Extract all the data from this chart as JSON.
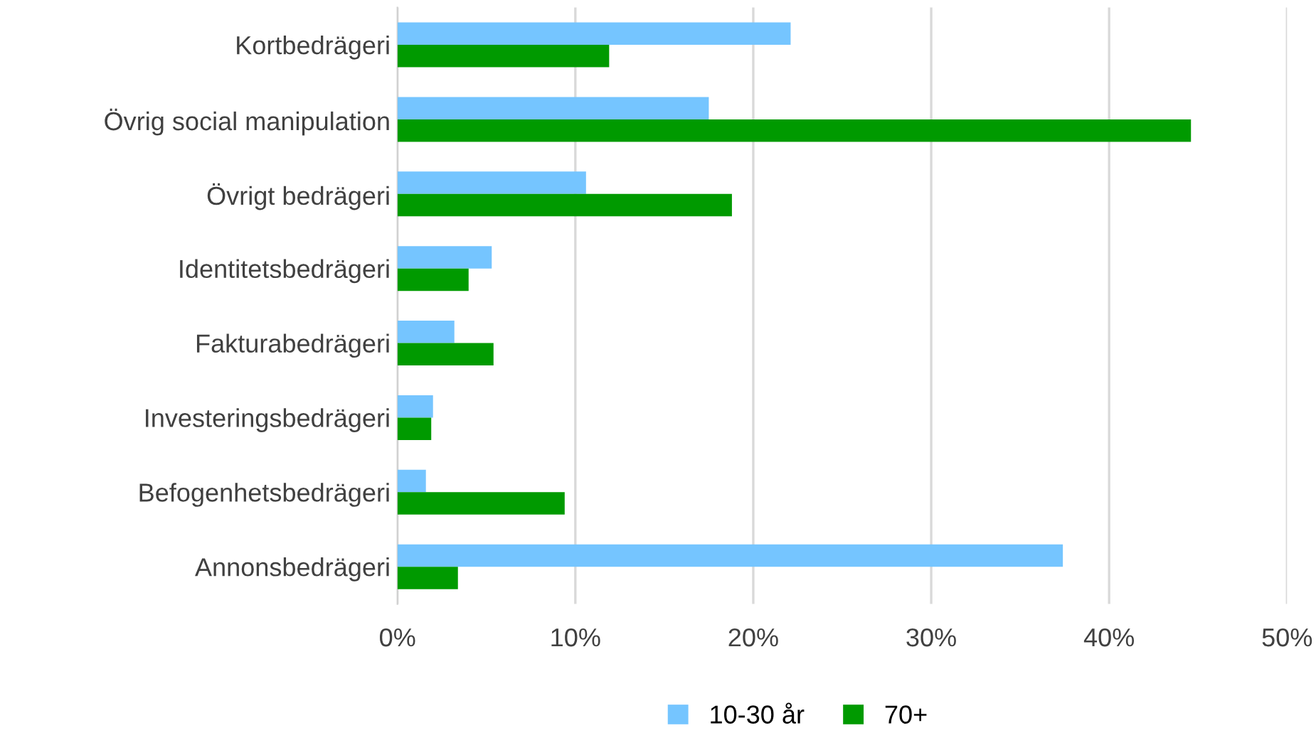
{
  "chart_data": {
    "type": "bar",
    "orientation": "horizontal",
    "categories": [
      "Kortbedrägeri",
      "Övrig social manipulation",
      "Övrigt bedrägeri",
      "Identitetsbedrägeri",
      "Fakturabedrägeri",
      "Investeringsbedrägeri",
      "Befogenhetsbedrägeri",
      "Annonsbedrägeri"
    ],
    "series": [
      {
        "name": "10-30 år",
        "color": "#75c5ff",
        "values": [
          22.1,
          17.5,
          10.6,
          5.3,
          3.2,
          2.0,
          1.6,
          37.4
        ]
      },
      {
        "name": "70+",
        "color": "#009a00",
        "values": [
          11.9,
          44.6,
          18.8,
          4.0,
          5.4,
          1.9,
          9.4,
          3.4
        ]
      }
    ],
    "xlim": [
      0,
      50
    ],
    "xticks": [
      {
        "value": 0,
        "label": "0%"
      },
      {
        "value": 10,
        "label": "10%"
      },
      {
        "value": 20,
        "label": "20%"
      },
      {
        "value": 30,
        "label": "30%"
      },
      {
        "value": 40,
        "label": "40%"
      },
      {
        "value": 50,
        "label": "50%"
      }
    ],
    "grid": "x",
    "legend": "bottom"
  }
}
